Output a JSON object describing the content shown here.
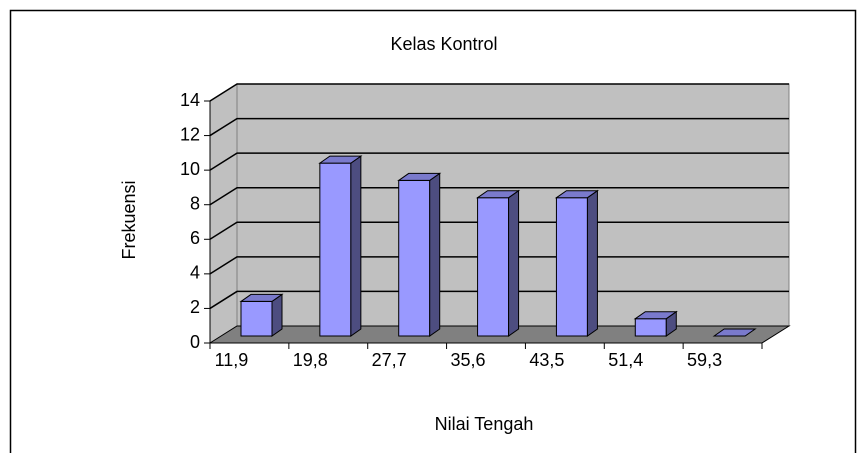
{
  "chart_data": {
    "type": "bar3d",
    "title": "Kelas Kontrol",
    "x_label": "Nilai Tengah",
    "y_label": "Frekuensi",
    "categories": [
      "11,9",
      "19,8",
      "27,7",
      "35,6",
      "43,5",
      "51,4",
      "59,3"
    ],
    "values": [
      2,
      10,
      9,
      8,
      8,
      1,
      0
    ],
    "color": "#9999ff",
    "ylim": [
      0,
      14
    ],
    "yticks": [
      0,
      2,
      4,
      6,
      8,
      10,
      12,
      14
    ],
    "grid": true
  }
}
